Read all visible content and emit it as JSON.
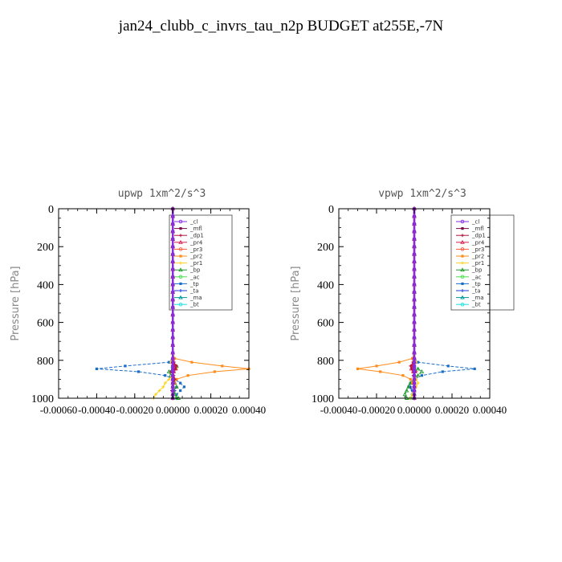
{
  "figure": {
    "title": "jan24_clubb_c_invrs_tau_n2p  BUDGET at255E,-7N"
  },
  "legend_entries": [
    "_cl",
    "_mfl",
    "_dp1",
    "_pr4",
    "_pr3",
    "_pr2",
    "_pr1",
    "_bp",
    "_ac",
    "_tp",
    "_ta",
    "_ma",
    "_bt"
  ],
  "series_colors": {
    "_cl": "#8a2be2",
    "_mfl": "#7a0a4a",
    "_dp1": "#b0103c",
    "_pr4": "#d42050",
    "_pr3": "#ff5a3a",
    "_pr2": "#ff8c1a",
    "_pr1": "#ffd21a",
    "_bp": "#1f9a2a",
    "_ac": "#4adf4a",
    "_tp": "#1a6ec8",
    "_ta": "#1a3ad8",
    "_ma": "#009a9a",
    "_bt": "#1ae0e0"
  },
  "chart_data": [
    {
      "type": "line",
      "title": "upwp   1xm^2/s^3",
      "xlabel": "",
      "ylabel": "Pressure [hPa]",
      "xlim": [
        -0.0006,
        0.0004
      ],
      "ylim": [
        0,
        1000
      ],
      "y_inverted": true,
      "xticks": [
        -0.0006,
        -0.0004,
        -0.0002,
        0.0,
        0.0002,
        0.0004
      ],
      "xtick_labels": [
        "-0.00060",
        "-0.00040",
        "-0.00020",
        "0.00000",
        "0.00020",
        "0.00040"
      ],
      "yticks": [
        0,
        200,
        400,
        600,
        800,
        1000
      ],
      "ytick_labels": [
        "0",
        "200",
        "400",
        "600",
        "800",
        "1000"
      ],
      "legend_position": "top-right",
      "pressure": [
        0,
        40,
        80,
        120,
        160,
        200,
        240,
        280,
        320,
        360,
        400,
        440,
        480,
        520,
        560,
        600,
        640,
        680,
        720,
        760,
        790,
        810,
        830,
        845,
        860,
        880,
        900,
        920,
        940,
        960,
        980,
        1000
      ],
      "series": [
        {
          "name": "_cl",
          "values": [
            0,
            0,
            0,
            0,
            0,
            0,
            0,
            0,
            0,
            0,
            0,
            0,
            0,
            0,
            0,
            0,
            0,
            0,
            0,
            0,
            0,
            0,
            0,
            0,
            0,
            0,
            0,
            0,
            0,
            0,
            0,
            0
          ]
        },
        {
          "name": "_mfl",
          "values": [
            0,
            0,
            0,
            0,
            0,
            0,
            0,
            0,
            0,
            0,
            0,
            0,
            0,
            0,
            0,
            0,
            0,
            0,
            0,
            0,
            0,
            0,
            0,
            0,
            0,
            0,
            0,
            0,
            0,
            0,
            0,
            0
          ]
        },
        {
          "name": "_dp1",
          "values": [
            0,
            0,
            0,
            0,
            0,
            0,
            0,
            0,
            0,
            0,
            0,
            0,
            0,
            0,
            0,
            0,
            0,
            0,
            0,
            0,
            0,
            5e-06,
            2e-05,
            1.5e-05,
            -1e-05,
            5e-06,
            1e-05,
            5e-06,
            0,
            -5e-06,
            0,
            0
          ]
        },
        {
          "name": "_pr4",
          "values": [
            0,
            0,
            0,
            0,
            0,
            0,
            0,
            0,
            0,
            0,
            0,
            0,
            0,
            0,
            0,
            0,
            0,
            0,
            0,
            0,
            0,
            0,
            1e-05,
            1.5e-05,
            5e-06,
            0,
            0,
            0,
            0,
            0,
            0,
            0
          ]
        },
        {
          "name": "_pr3",
          "values": [
            0,
            0,
            0,
            0,
            0,
            0,
            0,
            0,
            0,
            0,
            0,
            0,
            0,
            0,
            0,
            0,
            0,
            0,
            0,
            0,
            0,
            5e-06,
            1e-05,
            8e-06,
            5e-06,
            0,
            0,
            0,
            0,
            0,
            0,
            0
          ]
        },
        {
          "name": "_pr2",
          "values": [
            0,
            0,
            0,
            0,
            0,
            0,
            0,
            0,
            0,
            0,
            0,
            0,
            0,
            0,
            0,
            0,
            0,
            0,
            0,
            0,
            1e-05,
            0.0001,
            0.00026,
            0.0004,
            0.00022,
            8e-05,
            2e-05,
            1e-05,
            0,
            0,
            0,
            0
          ]
        },
        {
          "name": "_pr1",
          "values": [
            0,
            0,
            0,
            0,
            0,
            0,
            0,
            0,
            0,
            0,
            0,
            0,
            0,
            0,
            0,
            0,
            0,
            0,
            0,
            0,
            0,
            -1e-05,
            2e-05,
            2e-05,
            0,
            0,
            -2e-05,
            -4e-05,
            -5e-05,
            -7e-05,
            -9e-05,
            -0.0001
          ]
        },
        {
          "name": "_bp",
          "values": [
            0,
            0,
            0,
            0,
            0,
            0,
            0,
            0,
            0,
            0,
            0,
            0,
            0,
            0,
            0,
            0,
            0,
            0,
            0,
            0,
            0,
            0,
            2e-05,
            5e-06,
            -2e-05,
            -1e-05,
            0,
            1e-05,
            2e-05,
            5e-06,
            1e-05,
            3e-05
          ]
        },
        {
          "name": "_ac",
          "values": [
            0,
            0,
            0,
            0,
            0,
            0,
            0,
            0,
            0,
            0,
            0,
            0,
            0,
            0,
            0,
            0,
            0,
            0,
            0,
            0,
            0,
            0,
            0,
            0,
            0,
            0,
            0,
            0,
            0,
            0,
            1e-05,
            2e-05
          ]
        },
        {
          "name": "_tp",
          "values": [
            0,
            0,
            0,
            0,
            0,
            0,
            0,
            0,
            0,
            0,
            0,
            0,
            0,
            0,
            0,
            0,
            0,
            0,
            0,
            0,
            0,
            -2e-05,
            -0.00025,
            -0.0004,
            -0.00018,
            -4e-05,
            1e-05,
            4e-05,
            6e-05,
            4e-05,
            2e-05,
            2e-05
          ]
        },
        {
          "name": "_ta",
          "values": [
            0,
            0,
            0,
            0,
            0,
            0,
            0,
            0,
            0,
            0,
            0,
            0,
            0,
            0,
            0,
            0,
            0,
            0,
            0,
            0,
            0,
            0,
            0,
            0,
            0,
            0,
            0,
            1e-05,
            2e-05,
            1e-05,
            0,
            0
          ]
        },
        {
          "name": "_ma",
          "values": [
            0,
            0,
            0,
            0,
            0,
            0,
            0,
            0,
            0,
            0,
            0,
            0,
            0,
            0,
            0,
            0,
            0,
            0,
            0,
            0,
            0,
            0,
            0,
            0,
            0,
            0,
            0,
            0,
            0,
            0,
            0,
            0
          ]
        },
        {
          "name": "_bt",
          "values": [
            0,
            0,
            0,
            0,
            0,
            0,
            0,
            0,
            0,
            0,
            0,
            0,
            0,
            0,
            0,
            0,
            0,
            0,
            0,
            0,
            0,
            0,
            0,
            0,
            0,
            0,
            0,
            0,
            0,
            0,
            0,
            0
          ]
        }
      ]
    },
    {
      "type": "line",
      "title": "vpwp   1xm^2/s^3",
      "xlabel": "",
      "ylabel": "Pressure [hPa]",
      "xlim": [
        -0.0004,
        0.0004
      ],
      "ylim": [
        0,
        1000
      ],
      "y_inverted": true,
      "xticks": [
        -0.0004,
        -0.0002,
        0.0,
        0.0002,
        0.0004
      ],
      "xtick_labels": [
        "-0.00040",
        "-0.00020",
        "0.00000",
        "0.00020",
        "0.00040"
      ],
      "yticks": [
        0,
        200,
        400,
        600,
        800,
        1000
      ],
      "ytick_labels": [
        "0",
        "200",
        "400",
        "600",
        "800",
        "1000"
      ],
      "legend_position": "top-right",
      "pressure": [
        0,
        40,
        80,
        120,
        160,
        200,
        240,
        280,
        320,
        360,
        400,
        440,
        480,
        520,
        560,
        600,
        640,
        680,
        720,
        760,
        790,
        810,
        830,
        845,
        860,
        880,
        900,
        920,
        940,
        960,
        980,
        1000
      ],
      "series": [
        {
          "name": "_cl",
          "values": [
            0,
            0,
            0,
            0,
            0,
            0,
            0,
            0,
            0,
            0,
            0,
            0,
            0,
            0,
            0,
            0,
            0,
            0,
            0,
            0,
            0,
            0,
            0,
            0,
            0,
            0,
            0,
            0,
            0,
            0,
            0,
            0
          ]
        },
        {
          "name": "_mfl",
          "values": [
            0,
            0,
            0,
            0,
            0,
            0,
            0,
            0,
            0,
            0,
            0,
            0,
            0,
            0,
            0,
            0,
            0,
            0,
            0,
            0,
            0,
            0,
            0,
            0,
            0,
            0,
            0,
            0,
            0,
            0,
            0,
            0
          ]
        },
        {
          "name": "_dp1",
          "values": [
            0,
            0,
            0,
            0,
            0,
            0,
            0,
            0,
            0,
            0,
            0,
            0,
            0,
            0,
            0,
            0,
            0,
            0,
            0,
            0,
            0,
            -5e-06,
            -2e-05,
            -1.5e-05,
            1e-05,
            -5e-06,
            0,
            0,
            0,
            0,
            0,
            0
          ]
        },
        {
          "name": "_pr4",
          "values": [
            0,
            0,
            0,
            0,
            0,
            0,
            0,
            0,
            0,
            0,
            0,
            0,
            0,
            0,
            0,
            0,
            0,
            0,
            0,
            0,
            0,
            0,
            -1e-05,
            -1.5e-05,
            -5e-06,
            0,
            0,
            0,
            0,
            0,
            0,
            0
          ]
        },
        {
          "name": "_pr3",
          "values": [
            0,
            0,
            0,
            0,
            0,
            0,
            0,
            0,
            0,
            0,
            0,
            0,
            0,
            0,
            0,
            0,
            0,
            0,
            0,
            0,
            0,
            -5e-06,
            -1e-05,
            -8e-06,
            -5e-06,
            0,
            0,
            0,
            0,
            0,
            0,
            0
          ]
        },
        {
          "name": "_pr2",
          "values": [
            0,
            0,
            0,
            0,
            0,
            0,
            0,
            0,
            0,
            0,
            0,
            0,
            0,
            0,
            0,
            0,
            0,
            0,
            0,
            0,
            -1e-05,
            -8e-05,
            -0.0002,
            -0.0003,
            -0.00018,
            -6e-05,
            -2e-05,
            -1e-05,
            0,
            0,
            0,
            0
          ]
        },
        {
          "name": "_pr1",
          "values": [
            0,
            0,
            0,
            0,
            0,
            0,
            0,
            0,
            0,
            0,
            0,
            0,
            0,
            0,
            0,
            0,
            0,
            0,
            0,
            0,
            0,
            1e-05,
            0,
            -1e-05,
            0,
            0,
            1e-05,
            2e-05,
            1e-05,
            0,
            -1e-05,
            -2e-05
          ]
        },
        {
          "name": "_bp",
          "values": [
            0,
            0,
            0,
            0,
            0,
            0,
            0,
            0,
            0,
            0,
            0,
            0,
            0,
            0,
            0,
            0,
            0,
            0,
            0,
            0,
            0,
            0,
            -1e-05,
            2e-05,
            4e-05,
            2e-05,
            0,
            -2e-05,
            -3e-05,
            -4e-05,
            -5e-05,
            -4e-05
          ]
        },
        {
          "name": "_ac",
          "values": [
            0,
            0,
            0,
            0,
            0,
            0,
            0,
            0,
            0,
            0,
            0,
            0,
            0,
            0,
            0,
            0,
            0,
            0,
            0,
            0,
            0,
            0,
            0,
            0,
            0,
            0,
            0,
            0,
            0,
            0,
            -1e-05,
            -2e-05
          ]
        },
        {
          "name": "_tp",
          "values": [
            0,
            0,
            0,
            0,
            0,
            0,
            0,
            0,
            0,
            0,
            0,
            0,
            0,
            0,
            0,
            0,
            0,
            0,
            0,
            0,
            0,
            2e-05,
            0.00018,
            0.00032,
            0.00015,
            4e-05,
            0,
            -2e-05,
            -3e-05,
            -1e-05,
            0,
            0
          ]
        },
        {
          "name": "_ta",
          "values": [
            0,
            0,
            0,
            0,
            0,
            0,
            0,
            0,
            0,
            0,
            0,
            0,
            0,
            0,
            0,
            0,
            0,
            0,
            0,
            0,
            0,
            0,
            0,
            0,
            0,
            0,
            0,
            -1e-05,
            -2e-05,
            -1e-05,
            0,
            0
          ]
        },
        {
          "name": "_ma",
          "values": [
            0,
            0,
            0,
            0,
            0,
            0,
            0,
            0,
            0,
            0,
            0,
            0,
            0,
            0,
            0,
            0,
            0,
            0,
            0,
            0,
            0,
            0,
            0,
            0,
            0,
            0,
            0,
            0,
            0,
            0,
            0,
            0
          ]
        },
        {
          "name": "_bt",
          "values": [
            0,
            0,
            0,
            0,
            0,
            0,
            0,
            0,
            0,
            0,
            0,
            0,
            0,
            0,
            0,
            0,
            0,
            0,
            0,
            0,
            0,
            0,
            0,
            0,
            0,
            0,
            0,
            0,
            0,
            0,
            0,
            0
          ]
        }
      ]
    }
  ]
}
